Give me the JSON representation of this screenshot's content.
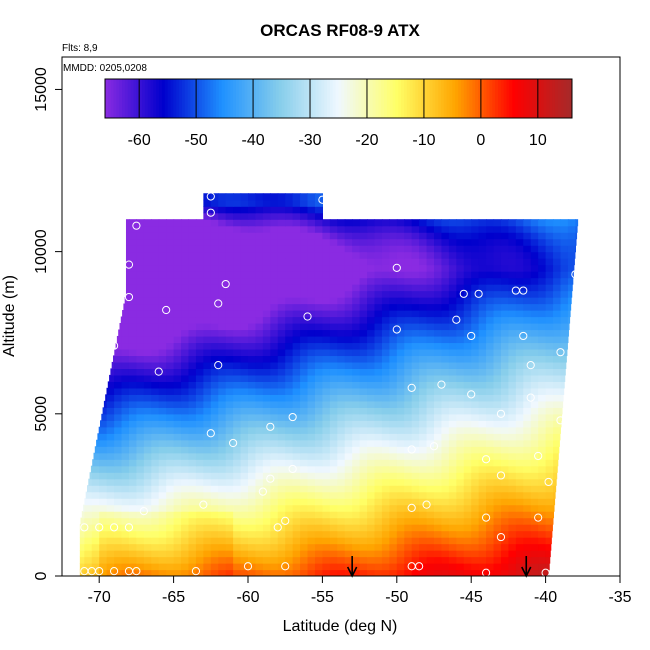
{
  "chart_data": {
    "type": "heatmap",
    "title": "ORCAS RF08-9 ATX",
    "subtitle_flights": "Flts: 8,9",
    "subtitle_dates": "MMDD: 0205,0208",
    "xlabel": "Latitude (deg N)",
    "ylabel": "Altitude (m)",
    "xlim": [
      -72.5,
      -35
    ],
    "ylim": [
      0,
      16000
    ],
    "x_ticks": [
      -70,
      -65,
      -60,
      -55,
      -50,
      -45,
      -40,
      -35
    ],
    "y_ticks": [
      0,
      5000,
      10000,
      15000
    ],
    "colorbar": {
      "min": -66,
      "max": 16,
      "ticks": [
        -60,
        -50,
        -40,
        -30,
        -20,
        -10,
        0,
        10
      ],
      "colors": [
        "#8a2be2",
        "#0000cd",
        "#1e90ff",
        "#87ceeb",
        "#f0f8ff",
        "#ffff66",
        "#ffa500",
        "#ff0000",
        "#a52a2a"
      ]
    },
    "markers": [
      {
        "x": -53,
        "type": "arrow"
      },
      {
        "x": -41.3,
        "type": "arrow"
      }
    ],
    "observations": [
      [
        -71,
        150
      ],
      [
        -70.5,
        150
      ],
      [
        -70,
        150
      ],
      [
        -69,
        150
      ],
      [
        -68,
        150
      ],
      [
        -67.5,
        150
      ],
      [
        -63.5,
        150
      ],
      [
        -60,
        300
      ],
      [
        -57.5,
        300
      ],
      [
        -49,
        300
      ],
      [
        -48.5,
        300
      ],
      [
        -44,
        100
      ],
      [
        -40,
        100
      ],
      [
        -71,
        1500
      ],
      [
        -70,
        1500
      ],
      [
        -69,
        1500
      ],
      [
        -68,
        1500
      ],
      [
        -67,
        2000
      ],
      [
        -63,
        2200
      ],
      [
        -59,
        2600
      ],
      [
        -58,
        1500
      ],
      [
        -57.5,
        1700
      ],
      [
        -49,
        2100
      ],
      [
        -48,
        2200
      ],
      [
        -44,
        1800
      ],
      [
        -43,
        1200
      ],
      [
        -40.5,
        1800
      ],
      [
        -39.8,
        2900
      ],
      [
        -57,
        3300
      ],
      [
        -58.5,
        3000
      ],
      [
        -43,
        3100
      ],
      [
        -62.5,
        4400
      ],
      [
        -61,
        4100
      ],
      [
        -58.5,
        4600
      ],
      [
        -49,
        3900
      ],
      [
        -47.5,
        4000
      ],
      [
        -44,
        3600
      ],
      [
        -40.5,
        3700
      ],
      [
        -57,
        4900
      ],
      [
        -49,
        5800
      ],
      [
        -45,
        5600
      ],
      [
        -43,
        5000
      ],
      [
        -41,
        5500
      ],
      [
        -39,
        4800
      ],
      [
        -47,
        5900
      ],
      [
        -66,
        6300
      ],
      [
        -62,
        6500
      ],
      [
        -41,
        6500
      ],
      [
        -41.5,
        7400
      ],
      [
        -39,
        6900
      ],
      [
        -69,
        7100
      ],
      [
        -56,
        8000
      ],
      [
        -50,
        7600
      ],
      [
        -46,
        7900
      ],
      [
        -45,
        7400
      ],
      [
        -65.5,
        8200
      ],
      [
        -62,
        8400
      ],
      [
        -68,
        8600
      ],
      [
        -61.5,
        9000
      ],
      [
        -45.5,
        8700
      ],
      [
        -44.5,
        8700
      ],
      [
        -42,
        8800
      ],
      [
        -41.5,
        8800
      ],
      [
        -38,
        9300
      ],
      [
        -68,
        9600
      ],
      [
        -50,
        9500
      ],
      [
        -67.5,
        10800
      ],
      [
        -62.5,
        11200
      ],
      [
        -51,
        11300
      ],
      [
        -37,
        11100
      ],
      [
        -62.5,
        11700
      ],
      [
        -55,
        11600
      ],
      [
        -72.5,
        1500
      ]
    ]
  }
}
